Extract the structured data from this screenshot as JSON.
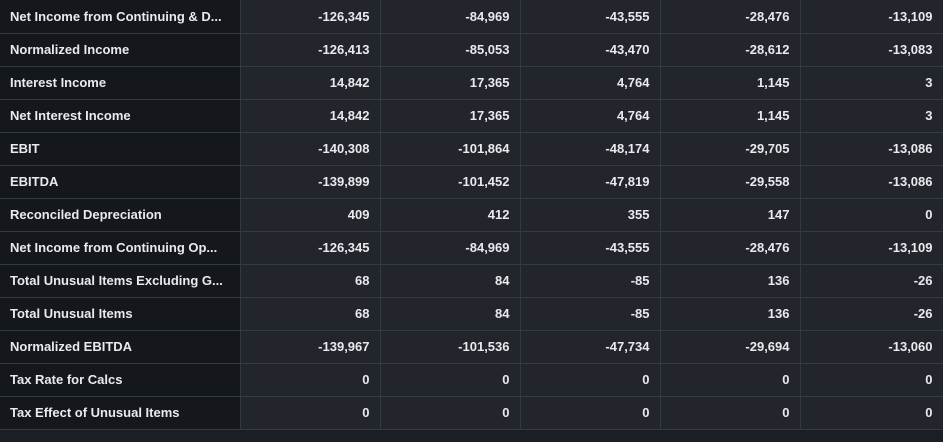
{
  "table": {
    "rows": [
      {
        "label": "Net Income from Continuing & D...",
        "values": [
          "-126,345",
          "-84,969",
          "-43,555",
          "-28,476",
          "-13,109"
        ]
      },
      {
        "label": "Normalized Income",
        "values": [
          "-126,413",
          "-85,053",
          "-43,470",
          "-28,612",
          "-13,083"
        ]
      },
      {
        "label": "Interest Income",
        "values": [
          "14,842",
          "17,365",
          "4,764",
          "1,145",
          "3"
        ]
      },
      {
        "label": "Net Interest Income",
        "values": [
          "14,842",
          "17,365",
          "4,764",
          "1,145",
          "3"
        ]
      },
      {
        "label": "EBIT",
        "values": [
          "-140,308",
          "-101,864",
          "-48,174",
          "-29,705",
          "-13,086"
        ]
      },
      {
        "label": "EBITDA",
        "values": [
          "-139,899",
          "-101,452",
          "-47,819",
          "-29,558",
          "-13,086"
        ]
      },
      {
        "label": "Reconciled Depreciation",
        "values": [
          "409",
          "412",
          "355",
          "147",
          "0"
        ]
      },
      {
        "label": "Net Income from Continuing Op...",
        "values": [
          "-126,345",
          "-84,969",
          "-43,555",
          "-28,476",
          "-13,109"
        ]
      },
      {
        "label": "Total Unusual Items Excluding G...",
        "values": [
          "68",
          "84",
          "-85",
          "136",
          "-26"
        ]
      },
      {
        "label": "Total Unusual Items",
        "values": [
          "68",
          "84",
          "-85",
          "136",
          "-26"
        ]
      },
      {
        "label": "Normalized EBITDA",
        "values": [
          "-139,967",
          "-101,536",
          "-47,734",
          "-29,694",
          "-13,060"
        ]
      },
      {
        "label": "Tax Rate for Calcs",
        "values": [
          "0",
          "0",
          "0",
          "0",
          "0"
        ]
      },
      {
        "label": "Tax Effect of Unusual Items",
        "values": [
          "0",
          "0",
          "0",
          "0",
          "0"
        ]
      }
    ]
  }
}
